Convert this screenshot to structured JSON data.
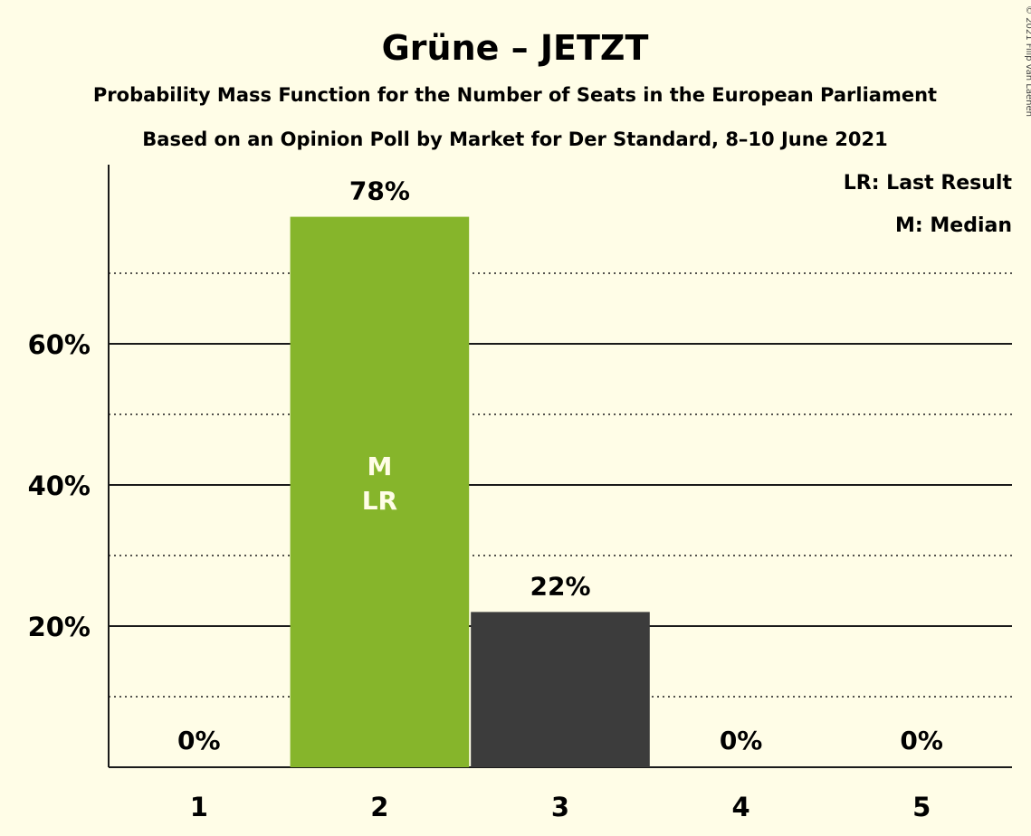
{
  "chart_data": {
    "type": "bar",
    "title": "Grüne – JETZT",
    "subtitle": "Probability Mass Function for the Number of Seats in the European Parliament",
    "subtitle2": "Based on an Opinion Poll by Market for Der Standard, 8–10 June 2021",
    "categories": [
      "1",
      "2",
      "3",
      "4",
      "5"
    ],
    "values": [
      0,
      78,
      22,
      0,
      0
    ],
    "value_labels": [
      "0%",
      "78%",
      "22%",
      "0%",
      "0%"
    ],
    "bar_colors": [
      "#86b52b",
      "#86b52b",
      "#3c3c3c",
      "#3c3c3c",
      "#3c3c3c"
    ],
    "bar_inside_labels": [
      "",
      "M\nLR",
      "",
      "",
      ""
    ],
    "ylim": [
      0,
      85
    ],
    "yticks": [
      20,
      40,
      60
    ],
    "ytick_labels": [
      "20%",
      "40%",
      "60%"
    ],
    "minor_gridlines": [
      10,
      30,
      50,
      70
    ],
    "grid": true,
    "legend": [
      "LR: Last Result",
      "M: Median"
    ],
    "legend_position": "top-right",
    "copyright": "© 2021 Filip van Laenen"
  }
}
